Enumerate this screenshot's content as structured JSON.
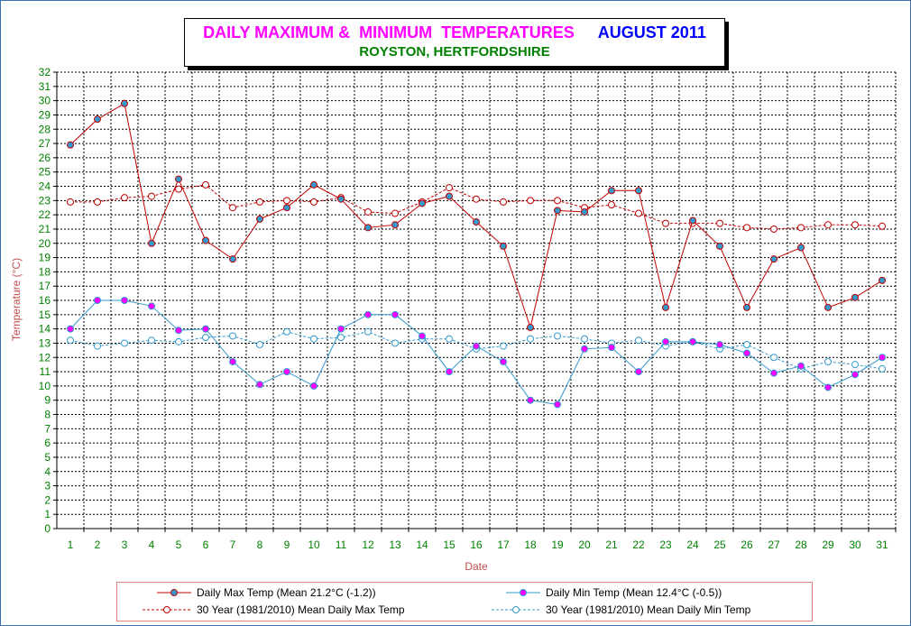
{
  "title": {
    "main": "DAILY MAXIMUM &  MINIMUM  TEMPERATURES",
    "month": "AUGUST 2011",
    "subtitle": "ROYSTON, HERTFORDSHIRE",
    "main_color": "#ff00ff",
    "month_color": "#0000ff",
    "subtitle_color": "#008000"
  },
  "chart_data": {
    "type": "line",
    "title": "DAILY MAXIMUM &  MINIMUM  TEMPERATURES  AUGUST 2011",
    "subtitle": "ROYSTON, HERTFORDSHIRE",
    "xlabel": "Date",
    "ylabel": "Temperature (°C)",
    "x": [
      1,
      2,
      3,
      4,
      5,
      6,
      7,
      8,
      9,
      10,
      11,
      12,
      13,
      14,
      15,
      16,
      17,
      18,
      19,
      20,
      21,
      22,
      23,
      24,
      25,
      26,
      27,
      28,
      29,
      30,
      31
    ],
    "ylim": [
      0,
      32
    ],
    "yticks": [
      0,
      1,
      2,
      3,
      4,
      5,
      6,
      7,
      8,
      9,
      10,
      11,
      12,
      13,
      14,
      15,
      16,
      17,
      18,
      19,
      20,
      21,
      22,
      23,
      24,
      25,
      26,
      27,
      28,
      29,
      30,
      31,
      32
    ],
    "grid": true,
    "legend_position": "bottom",
    "series": [
      {
        "name": "Daily Max Temp (Mean 21.2°C (-1.2))",
        "color": "#c00000",
        "marker_fill": "#3399cc",
        "style": "solid",
        "values": [
          26.9,
          28.7,
          29.8,
          20.0,
          24.5,
          20.2,
          18.9,
          21.7,
          22.5,
          24.1,
          23.1,
          21.1,
          21.3,
          22.8,
          23.3,
          21.5,
          19.8,
          14.1,
          22.3,
          22.2,
          23.7,
          23.7,
          15.5,
          21.6,
          19.8,
          15.5,
          18.9,
          19.7,
          15.5,
          16.2,
          17.4
        ]
      },
      {
        "name": "Daily Min Temp (Mean 12.4°C (-0.5))",
        "color": "#3399cc",
        "marker_fill": "#ff00ff",
        "style": "solid",
        "values": [
          14.0,
          16.0,
          16.0,
          15.6,
          13.9,
          14.0,
          11.7,
          10.1,
          11.0,
          10.0,
          14.0,
          15.0,
          15.0,
          13.5,
          11.0,
          12.8,
          11.7,
          9.0,
          8.7,
          12.6,
          12.7,
          11.0,
          13.1,
          13.1,
          12.9,
          12.3,
          10.9,
          11.4,
          9.9,
          10.8,
          12.0
        ]
      },
      {
        "name": "30 Year (1981/2010) Mean Daily Max Temp",
        "color": "#c00000",
        "marker_fill": "#ffffff",
        "style": "dashed",
        "values": [
          22.9,
          22.9,
          23.2,
          23.3,
          23.8,
          24.1,
          22.5,
          22.9,
          23.0,
          22.9,
          23.2,
          22.2,
          22.1,
          22.9,
          23.9,
          23.1,
          22.9,
          23.0,
          23.0,
          22.5,
          22.7,
          22.1,
          21.4,
          21.4,
          21.4,
          21.1,
          21.0,
          21.1,
          21.3,
          21.3,
          21.2
        ]
      },
      {
        "name": "30 Year (1981/2010) Mean Daily Min Temp",
        "color": "#3399cc",
        "marker_fill": "#ffffff",
        "style": "dashed",
        "values": [
          13.2,
          12.8,
          13.0,
          13.2,
          13.1,
          13.4,
          13.5,
          12.9,
          13.8,
          13.3,
          13.4,
          13.8,
          13.0,
          13.3,
          13.3,
          12.6,
          12.8,
          13.3,
          13.5,
          13.3,
          13.0,
          13.2,
          12.8,
          13.1,
          12.6,
          12.9,
          12.0,
          11.2,
          11.7,
          11.5,
          11.2
        ]
      }
    ]
  },
  "colors": {
    "frame_border": "#3d6fb0",
    "grid": "#000000",
    "axis_label": "#c0504d",
    "tick_label": "#008000",
    "legend_border": "#e08080"
  }
}
